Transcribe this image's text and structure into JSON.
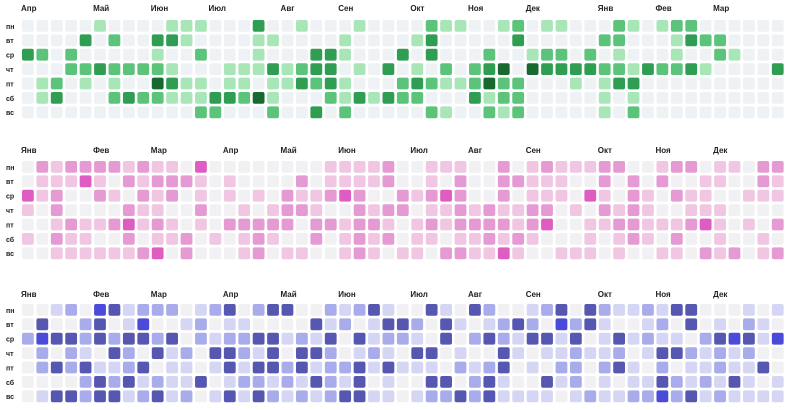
{
  "chart_data": [
    {
      "type": "heatmap",
      "name": "calendar-green",
      "weekday_labels": [
        "пн",
        "вт",
        "ср",
        "чт",
        "пт",
        "сб",
        "вс"
      ],
      "month_labels": [
        {
          "label": "Апр",
          "week": 0
        },
        {
          "label": "Май",
          "week": 5
        },
        {
          "label": "Июн",
          "week": 9
        },
        {
          "label": "Июл",
          "week": 13
        },
        {
          "label": "Авг",
          "week": 18
        },
        {
          "label": "Сен",
          "week": 22
        },
        {
          "label": "Окт",
          "week": 27
        },
        {
          "label": "Ноя",
          "week": 31
        },
        {
          "label": "Дек",
          "week": 35
        },
        {
          "label": "Янв",
          "week": 40
        },
        {
          "label": "Фев",
          "week": 44
        },
        {
          "label": "Мар",
          "week": 48
        }
      ],
      "palette": [
        "#eef2f4",
        "#a8e6b8",
        "#5cc47a",
        "#2f9e52",
        "#17692f"
      ],
      "levels": [
        [
          0,
          0,
          0,
          0,
          0,
          1,
          0,
          0,
          0,
          0,
          1,
          1,
          1,
          0,
          0,
          0,
          3,
          0,
          0,
          1,
          0,
          0,
          0,
          1,
          0,
          0,
          0,
          0,
          2,
          1,
          1,
          0,
          0,
          1,
          2,
          0,
          1,
          1,
          0,
          0,
          0,
          2,
          1,
          0,
          1,
          2,
          2,
          0,
          0,
          0,
          0,
          0,
          0
        ],
        [
          0,
          0,
          0,
          0,
          3,
          0,
          2,
          0,
          0,
          3,
          3,
          1,
          0,
          0,
          0,
          0,
          1,
          1,
          0,
          0,
          0,
          0,
          1,
          0,
          0,
          0,
          0,
          1,
          3,
          0,
          0,
          0,
          0,
          0,
          3,
          0,
          0,
          0,
          0,
          0,
          2,
          2,
          0,
          0,
          0,
          1,
          3,
          2,
          2,
          0,
          0,
          0,
          0
        ],
        [
          3,
          2,
          0,
          2,
          0,
          0,
          0,
          0,
          0,
          1,
          0,
          0,
          2,
          0,
          0,
          0,
          1,
          0,
          0,
          0,
          3,
          3,
          1,
          0,
          0,
          0,
          3,
          0,
          3,
          0,
          0,
          0,
          2,
          0,
          0,
          1,
          2,
          2,
          0,
          2,
          0,
          1,
          0,
          0,
          0,
          1,
          0,
          0,
          2,
          1,
          0,
          0,
          0
        ],
        [
          0,
          0,
          0,
          2,
          2,
          3,
          2,
          2,
          2,
          2,
          1,
          0,
          0,
          0,
          1,
          1,
          1,
          3,
          1,
          2,
          3,
          3,
          0,
          1,
          0,
          3,
          0,
          1,
          0,
          2,
          0,
          2,
          3,
          4,
          0,
          4,
          3,
          3,
          3,
          3,
          2,
          2,
          1,
          3,
          2,
          2,
          3,
          1,
          0,
          0,
          0,
          0,
          3
        ],
        [
          0,
          1,
          2,
          0,
          1,
          0,
          1,
          0,
          0,
          4,
          3,
          1,
          1,
          0,
          1,
          1,
          0,
          1,
          1,
          3,
          2,
          3,
          1,
          0,
          0,
          0,
          2,
          3,
          2,
          1,
          1,
          2,
          4,
          2,
          2,
          0,
          0,
          0,
          1,
          0,
          1,
          3,
          3,
          0,
          0,
          0,
          0,
          0,
          0,
          0,
          0,
          0,
          0
        ],
        [
          0,
          1,
          3,
          0,
          0,
          0,
          2,
          3,
          2,
          2,
          1,
          1,
          1,
          3,
          3,
          2,
          4,
          1,
          0,
          0,
          0,
          2,
          1,
          3,
          1,
          3,
          2,
          2,
          0,
          0,
          0,
          3,
          1,
          2,
          2,
          0,
          0,
          0,
          0,
          0,
          1,
          0,
          1,
          0,
          0,
          0,
          0,
          0,
          0,
          0,
          0,
          0,
          0
        ],
        [
          0,
          0,
          0,
          0,
          0,
          0,
          0,
          0,
          0,
          0,
          0,
          0,
          2,
          2,
          0,
          0,
          0,
          2,
          0,
          0,
          3,
          0,
          2,
          0,
          0,
          0,
          0,
          0,
          2,
          1,
          0,
          0,
          2,
          1,
          2,
          0,
          0,
          0,
          0,
          0,
          1,
          0,
          2,
          0,
          0,
          0,
          0,
          0,
          0,
          0,
          0,
          0,
          0
        ]
      ]
    },
    {
      "type": "heatmap",
      "name": "calendar-pink",
      "weekday_labels": [
        "пн",
        "вт",
        "ср",
        "чт",
        "пт",
        "сб",
        "вс"
      ],
      "month_labels": [
        {
          "label": "Янв",
          "week": 0
        },
        {
          "label": "Фев",
          "week": 5
        },
        {
          "label": "Мар",
          "week": 9
        },
        {
          "label": "Апр",
          "week": 14
        },
        {
          "label": "Май",
          "week": 18
        },
        {
          "label": "Июн",
          "week": 22
        },
        {
          "label": "Июл",
          "week": 27
        },
        {
          "label": "Авг",
          "week": 31
        },
        {
          "label": "Сен",
          "week": 35
        },
        {
          "label": "Окт",
          "week": 40
        },
        {
          "label": "Ноя",
          "week": 44
        },
        {
          "label": "Дек",
          "week": 48
        }
      ],
      "palette": [
        "#f1f1f3",
        "#f0c6e2",
        "#e59ad3",
        "#df5dc3",
        "#d33ab0"
      ],
      "levels": [
        [
          0,
          2,
          1,
          2,
          2,
          2,
          2,
          1,
          2,
          1,
          1,
          0,
          3,
          0,
          0,
          0,
          0,
          0,
          0,
          0,
          0,
          1,
          1,
          1,
          1,
          2,
          0,
          0,
          1,
          1,
          1,
          0,
          0,
          2,
          0,
          1,
          2,
          1,
          1,
          1,
          2,
          2,
          0,
          0,
          1,
          2,
          2,
          0,
          1,
          1,
          0,
          2,
          2
        ],
        [
          0,
          1,
          1,
          1,
          3,
          1,
          0,
          2,
          1,
          2,
          2,
          2,
          1,
          0,
          1,
          0,
          0,
          0,
          0,
          2,
          0,
          1,
          1,
          1,
          1,
          2,
          0,
          0,
          1,
          0,
          2,
          0,
          0,
          2,
          2,
          1,
          1,
          1,
          0,
          0,
          2,
          0,
          2,
          0,
          2,
          0,
          0,
          1,
          1,
          0,
          0,
          2,
          1
        ],
        [
          3,
          1,
          2,
          0,
          0,
          2,
          1,
          0,
          2,
          1,
          2,
          0,
          1,
          0,
          1,
          0,
          1,
          0,
          2,
          1,
          1,
          2,
          3,
          2,
          0,
          0,
          2,
          1,
          2,
          3,
          2,
          0,
          0,
          2,
          0,
          1,
          1,
          1,
          0,
          3,
          1,
          0,
          2,
          1,
          0,
          2,
          1,
          1,
          0,
          0,
          1,
          1,
          1
        ],
        [
          1,
          0,
          2,
          0,
          0,
          0,
          0,
          2,
          1,
          1,
          0,
          0,
          2,
          0,
          0,
          1,
          0,
          1,
          2,
          2,
          1,
          0,
          0,
          2,
          1,
          2,
          2,
          0,
          1,
          1,
          2,
          1,
          2,
          1,
          1,
          2,
          2,
          0,
          1,
          0,
          2,
          1,
          2,
          1,
          0,
          0,
          1,
          1,
          1,
          0,
          0,
          0,
          0
        ],
        [
          0,
          0,
          1,
          2,
          1,
          1,
          2,
          3,
          1,
          2,
          1,
          0,
          1,
          0,
          2,
          2,
          2,
          2,
          2,
          0,
          2,
          2,
          1,
          2,
          2,
          1,
          0,
          1,
          2,
          1,
          2,
          2,
          2,
          2,
          1,
          2,
          3,
          0,
          0,
          1,
          1,
          2,
          2,
          1,
          1,
          1,
          2,
          3,
          1,
          0,
          1,
          0,
          2
        ],
        [
          1,
          0,
          2,
          1,
          1,
          0,
          0,
          2,
          0,
          1,
          1,
          2,
          0,
          1,
          0,
          1,
          2,
          1,
          0,
          0,
          2,
          0,
          1,
          2,
          1,
          2,
          0,
          1,
          1,
          0,
          1,
          1,
          2,
          1,
          2,
          1,
          0,
          0,
          0,
          1,
          0,
          1,
          2,
          1,
          0,
          2,
          0,
          0,
          1,
          0,
          0,
          1,
          0
        ],
        [
          0,
          0,
          1,
          1,
          1,
          1,
          1,
          1,
          2,
          3,
          0,
          2,
          0,
          0,
          0,
          1,
          2,
          0,
          1,
          1,
          0,
          0,
          1,
          2,
          1,
          0,
          1,
          1,
          0,
          2,
          2,
          1,
          1,
          3,
          1,
          0,
          0,
          1,
          1,
          1,
          0,
          1,
          0,
          0,
          1,
          1,
          0,
          2,
          1,
          2,
          0,
          1,
          2
        ]
      ]
    },
    {
      "type": "heatmap",
      "name": "calendar-purple",
      "weekday_labels": [
        "пн",
        "вт",
        "ср",
        "чт",
        "пт",
        "сб",
        "вс"
      ],
      "month_labels": [
        {
          "label": "Янв",
          "week": 0
        },
        {
          "label": "Фев",
          "week": 5
        },
        {
          "label": "Мар",
          "week": 9
        },
        {
          "label": "Апр",
          "week": 14
        },
        {
          "label": "Май",
          "week": 18
        },
        {
          "label": "Июн",
          "week": 22
        },
        {
          "label": "Июл",
          "week": 27
        },
        {
          "label": "Авг",
          "week": 31
        },
        {
          "label": "Сен",
          "week": 35
        },
        {
          "label": "Окт",
          "week": 40
        },
        {
          "label": "Ноя",
          "week": 44
        },
        {
          "label": "Дек",
          "week": 48
        }
      ],
      "palette": [
        "#f1f1f3",
        "#d4d6f3",
        "#a8acea",
        "#5557b0",
        "#4b4bd9"
      ],
      "levels": [
        [
          0,
          0,
          1,
          2,
          0,
          4,
          3,
          1,
          2,
          2,
          2,
          0,
          1,
          2,
          3,
          0,
          2,
          3,
          3,
          0,
          0,
          2,
          1,
          2,
          3,
          1,
          0,
          0,
          3,
          1,
          0,
          3,
          2,
          0,
          0,
          1,
          2,
          3,
          0,
          3,
          2,
          1,
          1,
          2,
          1,
          3,
          3,
          0,
          0,
          0,
          1,
          0,
          1
        ],
        [
          0,
          3,
          0,
          0,
          2,
          3,
          0,
          1,
          4,
          0,
          0,
          1,
          2,
          0,
          1,
          1,
          0,
          0,
          0,
          0,
          3,
          1,
          2,
          0,
          1,
          3,
          3,
          2,
          0,
          3,
          1,
          0,
          1,
          2,
          3,
          2,
          0,
          4,
          2,
          3,
          1,
          0,
          0,
          1,
          2,
          0,
          3,
          0,
          1,
          0,
          2,
          1,
          0
        ],
        [
          2,
          4,
          3,
          3,
          2,
          3,
          2,
          3,
          3,
          2,
          3,
          0,
          2,
          1,
          2,
          2,
          3,
          3,
          1,
          2,
          1,
          3,
          0,
          3,
          1,
          2,
          2,
          1,
          0,
          3,
          0,
          2,
          3,
          2,
          1,
          3,
          3,
          1,
          3,
          0,
          1,
          3,
          1,
          2,
          1,
          1,
          0,
          2,
          3,
          4,
          3,
          1,
          4
        ],
        [
          0,
          2,
          0,
          2,
          1,
          0,
          3,
          2,
          0,
          3,
          1,
          2,
          0,
          3,
          3,
          2,
          1,
          3,
          0,
          3,
          3,
          2,
          0,
          1,
          2,
          1,
          0,
          3,
          3,
          0,
          1,
          0,
          0,
          3,
          1,
          0,
          1,
          1,
          2,
          1,
          1,
          2,
          0,
          1,
          3,
          3,
          2,
          1,
          2,
          1,
          2,
          0,
          0
        ],
        [
          0,
          2,
          3,
          2,
          3,
          1,
          1,
          2,
          3,
          0,
          1,
          1,
          0,
          1,
          3,
          1,
          3,
          3,
          2,
          3,
          1,
          2,
          2,
          3,
          1,
          3,
          1,
          1,
          1,
          0,
          2,
          1,
          2,
          3,
          0,
          1,
          0,
          2,
          2,
          0,
          2,
          3,
          1,
          0,
          2,
          0,
          1,
          1,
          2,
          1,
          1,
          3,
          0
        ],
        [
          0,
          0,
          0,
          0,
          2,
          3,
          2,
          3,
          1,
          2,
          1,
          1,
          3,
          0,
          1,
          2,
          2,
          1,
          2,
          1,
          3,
          2,
          1,
          3,
          0,
          1,
          0,
          0,
          3,
          3,
          0,
          2,
          3,
          1,
          0,
          0,
          3,
          1,
          2,
          0,
          1,
          0,
          1,
          1,
          3,
          2,
          1,
          2,
          1,
          3,
          1,
          0,
          1
        ],
        [
          0,
          1,
          3,
          3,
          2,
          3,
          3,
          1,
          2,
          3,
          1,
          2,
          0,
          1,
          3,
          1,
          3,
          2,
          1,
          2,
          1,
          2,
          3,
          3,
          1,
          1,
          0,
          1,
          2,
          2,
          3,
          2,
          3,
          1,
          1,
          1,
          1,
          0,
          1,
          2,
          1,
          1,
          2,
          2,
          4,
          2,
          3,
          1,
          2,
          1,
          1,
          1,
          1
        ]
      ]
    }
  ]
}
